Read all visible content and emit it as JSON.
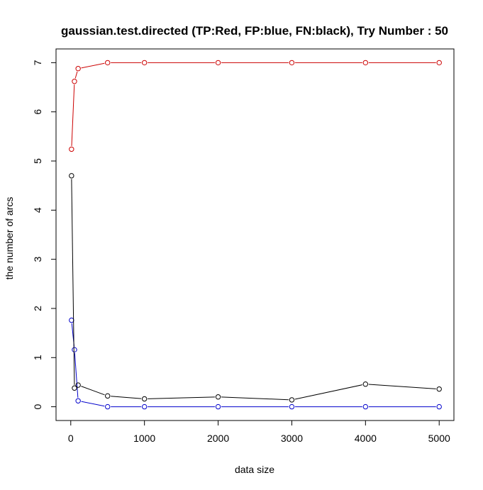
{
  "chart_data": {
    "type": "line",
    "title": "gaussian.test.directed  (TP:Red, FP:blue, FN:black),  Try Number :  50",
    "xlabel": "data size",
    "ylabel": "the number of arcs",
    "xlim": [
      -200,
      5200
    ],
    "ylim": [
      -0.28,
      7.28
    ],
    "x_ticks": [
      0,
      1000,
      2000,
      3000,
      4000,
      5000
    ],
    "y_ticks": [
      0,
      1,
      2,
      3,
      4,
      5,
      6,
      7
    ],
    "x_tick_labels": [
      "0",
      "1000",
      "2000",
      "3000",
      "4000",
      "5000"
    ],
    "y_tick_labels": [
      "0",
      "1",
      "2",
      "3",
      "4",
      "5",
      "6",
      "7"
    ],
    "x": [
      10,
      50,
      100,
      500,
      1000,
      2000,
      3000,
      4000,
      5000
    ],
    "series": [
      {
        "color": "#cc0000",
        "values": [
          5.24,
          6.62,
          6.88,
          7.0,
          7.0,
          7.0,
          7.0,
          7.0,
          7.0
        ]
      },
      {
        "color": "#0000cc",
        "values": [
          1.76,
          1.16,
          0.12,
          0.0,
          0.0,
          0.0,
          0.0,
          0.0,
          0.0
        ]
      },
      {
        "color": "#000000",
        "values": [
          4.7,
          0.38,
          0.44,
          0.22,
          0.16,
          0.2,
          0.14,
          0.46,
          0.36
        ]
      }
    ],
    "grid": false,
    "marker": "open-circle"
  }
}
